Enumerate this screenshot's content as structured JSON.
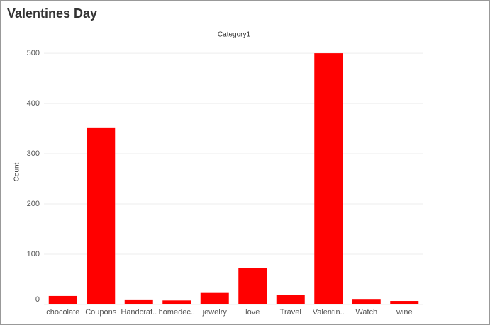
{
  "chart_data": {
    "type": "bar",
    "title": "Valentines Day",
    "header": "Category1",
    "y_label": "Count",
    "categories": [
      "chocolate",
      "Coupons",
      "Handcraf..",
      "homedec..",
      "jewelry",
      "love",
      "Travel",
      "Valentin..",
      "Watch",
      "wine"
    ],
    "values": [
      17,
      351,
      10,
      8,
      23,
      73,
      19,
      500,
      11,
      7
    ],
    "color": "#ff0000",
    "ylim": [
      0,
      510
    ],
    "yticks": [
      0,
      100,
      200,
      300,
      400,
      500
    ],
    "grid": true
  }
}
